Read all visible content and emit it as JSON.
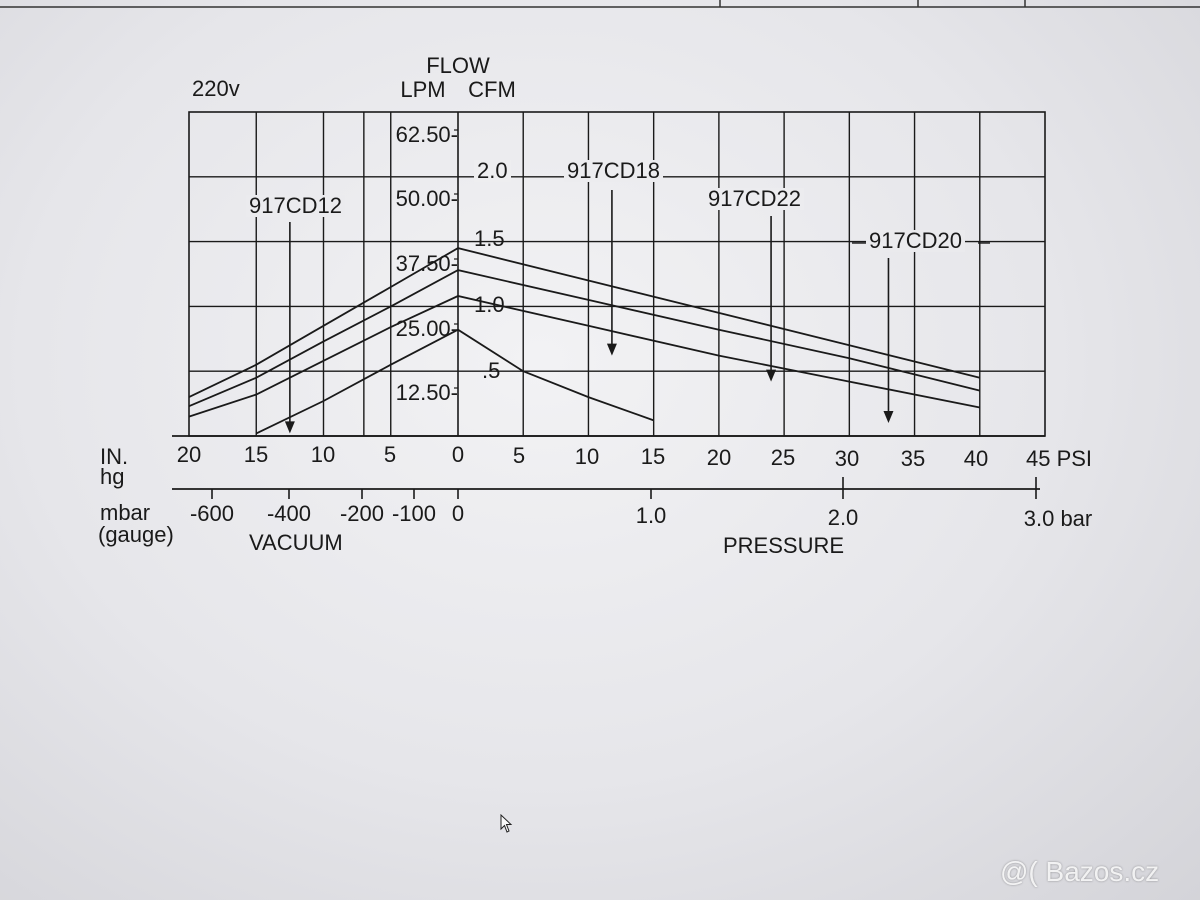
{
  "page": {
    "watermark": "@( Bazos.cz"
  },
  "chart_data": {
    "type": "line",
    "title": "FLOW",
    "voltage": "220v",
    "ylabel_left": "LPM",
    "ylabel_right": "CFM",
    "ylim_cfm": [
      0,
      2.5
    ],
    "lpm_ticks": [
      "62.50-",
      "50.00-",
      "37.50-",
      "25.00-",
      "12.50-"
    ],
    "cfm_ticks": [
      "2.0",
      "1.5",
      "1.0",
      ".5"
    ],
    "x_axis_units": "IN. Hg (vacuum) / PSI (pressure)",
    "x_inhg_title": [
      "IN.",
      "hg"
    ],
    "x_inhg_ticks": [
      "20",
      "15",
      "10",
      "5",
      "0"
    ],
    "x_psi_ticks": [
      "5",
      "10",
      "15",
      "20",
      "25",
      "30",
      "35",
      "40",
      "45 PSI"
    ],
    "mbar_title": [
      "mbar",
      "(gauge)"
    ],
    "mbar_ticks": [
      "-600",
      "-400",
      "-200",
      "-100",
      "0"
    ],
    "bar_ticks": [
      "1.0",
      "2.0",
      "3.0 bar"
    ],
    "vacuum_label": "VACUUM",
    "pressure_label": "PRESSURE",
    "grid": true,
    "series": [
      {
        "name": "917CD20",
        "vacuum": [
          [
            20,
            0.3
          ],
          [
            15,
            0.55
          ],
          [
            10,
            0.85
          ],
          [
            5,
            1.15
          ],
          [
            0,
            1.45
          ]
        ],
        "pressure": [
          [
            0,
            1.45
          ],
          [
            10,
            1.2
          ],
          [
            20,
            0.95
          ],
          [
            30,
            0.7
          ],
          [
            40,
            0.45
          ]
        ]
      },
      {
        "name": "917CD22",
        "vacuum": [
          [
            20,
            0.23
          ],
          [
            15,
            0.45
          ],
          [
            10,
            0.73
          ],
          [
            5,
            1.0
          ],
          [
            0,
            1.28
          ]
        ],
        "pressure": [
          [
            0,
            1.28
          ],
          [
            10,
            1.05
          ],
          [
            20,
            0.82
          ],
          [
            30,
            0.6
          ],
          [
            40,
            0.35
          ]
        ]
      },
      {
        "name": "917CD18",
        "vacuum": [
          [
            20,
            0.15
          ],
          [
            15,
            0.32
          ],
          [
            10,
            0.58
          ],
          [
            5,
            0.84
          ],
          [
            0,
            1.08
          ]
        ],
        "pressure": [
          [
            0,
            1.08
          ],
          [
            10,
            0.85
          ],
          [
            20,
            0.62
          ],
          [
            30,
            0.42
          ],
          [
            40,
            0.22
          ]
        ]
      },
      {
        "name": "917CD12",
        "vacuum": [
          [
            15,
            0.02
          ],
          [
            10,
            0.27
          ],
          [
            5,
            0.55
          ],
          [
            0,
            0.82
          ]
        ],
        "pressure": [
          [
            0,
            0.82
          ],
          [
            5,
            0.5
          ],
          [
            10,
            0.3
          ],
          [
            15,
            0.12
          ]
        ]
      }
    ],
    "annotations": [
      "917CD12",
      "917CD18",
      "917CD22",
      "917CD20"
    ],
    "colors": {
      "line": "#1a1a1a",
      "grid": "#1a1a1a"
    }
  }
}
